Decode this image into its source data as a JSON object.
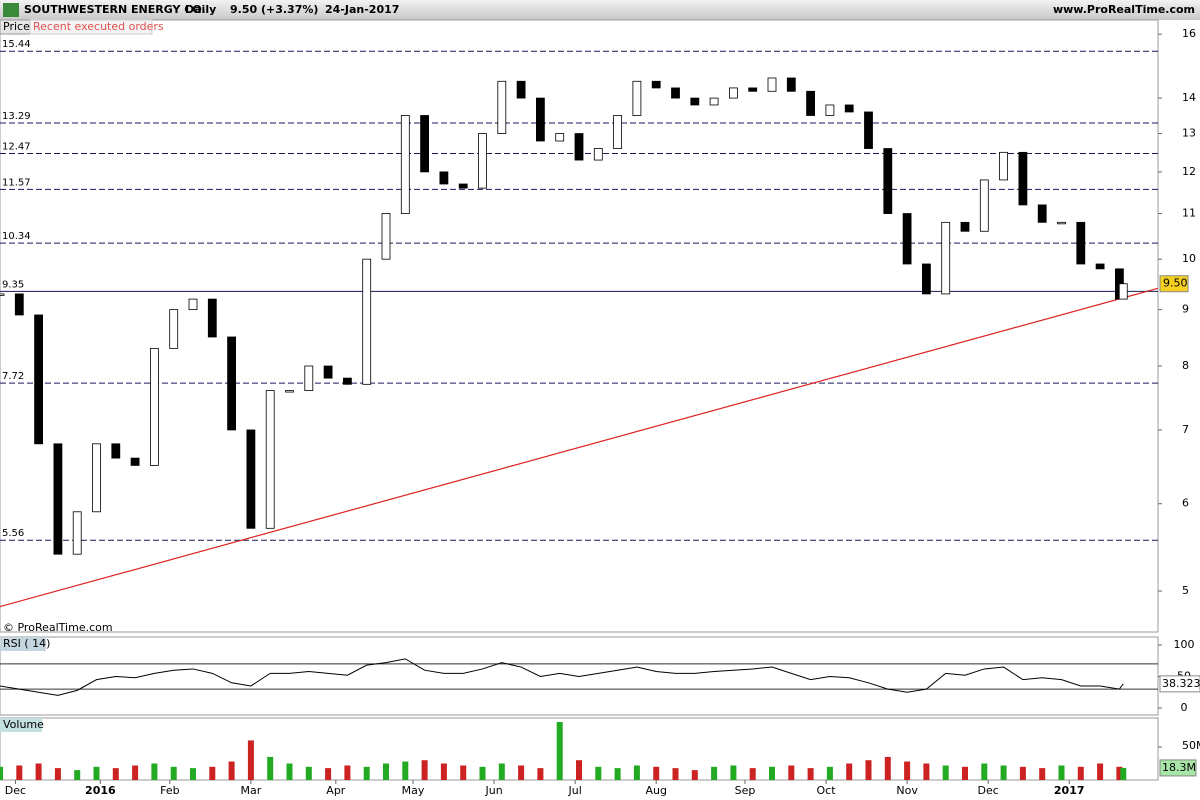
{
  "header": {
    "title": "SOUTHWESTERN ENERGY CO.",
    "interval": "Daily",
    "quote": "9.50 (+3.37%)",
    "date": "24-Jan-2017",
    "site": "www.ProRealTime.com"
  },
  "tabs": {
    "price": "Price",
    "orders": "Recent executed orders"
  },
  "copyright": "© ProRealTime.com",
  "chart_data": [
    {
      "type": "candlestick",
      "log": true,
      "color_up": "#ffffff",
      "color_down": "#000000",
      "x": [
        0,
        5,
        10,
        15,
        20,
        25,
        30,
        35,
        40,
        45,
        50,
        55,
        60,
        65,
        70,
        75,
        80,
        85,
        90,
        95,
        100,
        105,
        110,
        115,
        120,
        125,
        130,
        135,
        140,
        145,
        150,
        155,
        160,
        165,
        170,
        175,
        180,
        185,
        190,
        195,
        200,
        205,
        210,
        215,
        220,
        225,
        230,
        235,
        240,
        245,
        250,
        255,
        260,
        265,
        270,
        275,
        280,
        285,
        290,
        291
      ],
      "values": [
        9.3,
        8.9,
        6.8,
        5.4,
        5.9,
        6.8,
        6.6,
        6.5,
        8.3,
        9.0,
        9.2,
        8.5,
        7.0,
        5.7,
        7.6,
        7.6,
        8.0,
        7.8,
        7.7,
        10.0,
        11.0,
        13.5,
        12.0,
        11.7,
        11.6,
        13.0,
        14.5,
        14.0,
        12.8,
        13.0,
        12.3,
        12.6,
        13.5,
        14.5,
        14.3,
        14.0,
        13.8,
        14.0,
        14.3,
        14.2,
        14.6,
        14.2,
        13.5,
        13.8,
        13.6,
        12.6,
        11.0,
        9.9,
        9.3,
        10.8,
        10.6,
        11.8,
        12.5,
        11.2,
        10.8,
        10.8,
        9.9,
        9.8,
        9.2,
        9.5
      ],
      "xlim": [
        0,
        300
      ],
      "xticks": [
        {
          "value": 4,
          "label": "Dec"
        },
        {
          "value": 26,
          "label": "2016"
        },
        {
          "value": 44,
          "label": "Feb"
        },
        {
          "value": 65,
          "label": "Mar"
        },
        {
          "value": 87,
          "label": "Apr"
        },
        {
          "value": 107,
          "label": "May"
        },
        {
          "value": 128,
          "label": "Jun"
        },
        {
          "value": 149,
          "label": "Jul"
        },
        {
          "value": 170,
          "label": "Aug"
        },
        {
          "value": 193,
          "label": "Sep"
        },
        {
          "value": 214,
          "label": "Oct"
        },
        {
          "value": 235,
          "label": "Nov"
        },
        {
          "value": 256,
          "label": "Dec"
        },
        {
          "value": 277,
          "label": "2017"
        }
      ],
      "ylim": [
        4.59,
        16.48
      ],
      "yticks": [
        5,
        6,
        7,
        8,
        9,
        10,
        11,
        12,
        13,
        14,
        16
      ],
      "levels": [
        15.44,
        13.29,
        12.47,
        11.57,
        10.34,
        7.72,
        5.56
      ],
      "support": 9.35,
      "trendline": {
        "color": "#e02020",
        "x": [
          0,
          300
        ],
        "values": [
          4.84,
          9.41
        ]
      },
      "last": {
        "value": 9.5,
        "label": "9.50"
      }
    },
    {
      "type": "line",
      "title": "RSI ( 14)",
      "color": "#000000",
      "values": [
        35,
        30,
        25,
        20,
        28,
        45,
        50,
        48,
        55,
        60,
        62,
        55,
        40,
        35,
        55,
        55,
        58,
        55,
        52,
        68,
        72,
        78,
        60,
        55,
        55,
        62,
        72,
        65,
        50,
        55,
        50,
        55,
        60,
        65,
        58,
        55,
        55,
        58,
        60,
        62,
        65,
        55,
        45,
        50,
        48,
        40,
        30,
        25,
        30,
        55,
        52,
        62,
        65,
        45,
        48,
        45,
        35,
        35,
        30,
        38.323
      ],
      "ylim": [
        -11.1,
        112.7
      ],
      "yticks": [
        0,
        50,
        100
      ],
      "levels": [
        30,
        70
      ],
      "last": 38.323
    },
    {
      "type": "bar",
      "title": "Volume",
      "color_up": "#22aa22",
      "color_down": "#cc2222",
      "values": [
        20,
        22,
        25,
        18,
        15,
        20,
        18,
        22,
        25,
        20,
        18,
        20,
        28,
        60,
        35,
        25,
        20,
        18,
        22,
        20,
        25,
        28,
        30,
        25,
        22,
        20,
        25,
        22,
        18,
        88,
        30,
        20,
        18,
        22,
        20,
        18,
        15,
        20,
        22,
        18,
        20,
        22,
        18,
        20,
        25,
        30,
        35,
        28,
        25,
        22,
        20,
        25,
        22,
        20,
        18,
        22,
        20,
        25,
        20,
        18.3
      ],
      "ylim": [
        0,
        94
      ],
      "yticks": [
        {
          "value": 50,
          "label": "50M"
        }
      ],
      "last": {
        "value": 18.3,
        "label": "18.3M"
      }
    }
  ]
}
